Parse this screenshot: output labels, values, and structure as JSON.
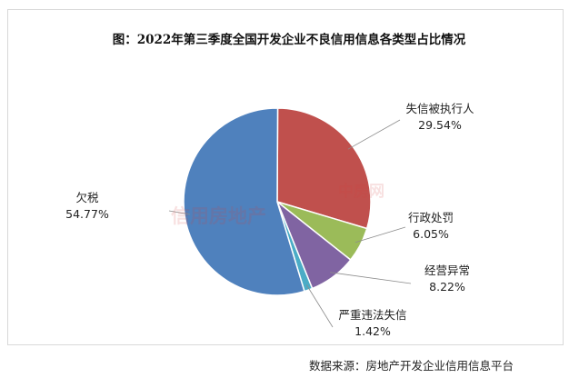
{
  "chart_data": {
    "type": "pie",
    "title": "图：2022年第三季度全国开发企业不良信用信息各类型占比情况",
    "slices": [
      {
        "label": "失信被执行人",
        "value_text": "29.54%",
        "value": 29.54,
        "color": "#C0504D"
      },
      {
        "label": "行政处罚",
        "value_text": "6.05%",
        "value": 6.05,
        "color": "#9BBB59"
      },
      {
        "label": "经营异常",
        "value_text": "8.22%",
        "value": 8.22,
        "color": "#8064A2"
      },
      {
        "label": "严重违法失信",
        "value_text": "1.42%",
        "value": 1.42,
        "color": "#4BACC6"
      },
      {
        "label": "欠税",
        "value_text": "54.77%",
        "value": 54.77,
        "color": "#4F81BD"
      }
    ],
    "legend": "none"
  },
  "source_note": "数据来源：房地产开发企业信用信息平台",
  "watermarks": {
    "left": "信用房地产",
    "right": "中房网"
  }
}
